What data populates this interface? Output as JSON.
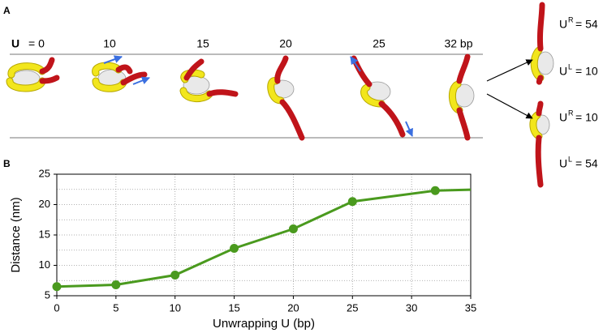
{
  "panels": {
    "a": "A",
    "b": "B"
  },
  "unwrap_symbol": "U",
  "unwrap_labels": [
    "= 0",
    "10",
    "15",
    "20",
    "25",
    "32 bp"
  ],
  "asymmetric_labels": [
    {
      "base": "U",
      "sup": "R",
      "rest": "= 54"
    },
    {
      "base": "U",
      "sup": "L",
      "rest": "= 10"
    },
    {
      "base": "U",
      "sup": "R",
      "rest": "= 10"
    },
    {
      "base": "U",
      "sup": "L",
      "rest": "= 54"
    }
  ],
  "chart_data": {
    "type": "line",
    "x_label": "Unwrapping U (bp)",
    "y_label": "Distance (nm)",
    "x": [
      0,
      5,
      10,
      15,
      20,
      25,
      32,
      35
    ],
    "series": [
      {
        "color": "#4a9a1e",
        "values": [
          6.5,
          6.8,
          8.4,
          12.8,
          16.0,
          20.5,
          22.3,
          22.45
        ],
        "markers": [
          true,
          true,
          true,
          true,
          true,
          true,
          true,
          false
        ]
      }
    ],
    "xlim": [
      0,
      35
    ],
    "xticks": [
      0,
      5,
      10,
      15,
      20,
      25,
      30,
      35
    ],
    "ylim": [
      5,
      25
    ],
    "yticks": [
      5,
      10,
      15,
      20,
      25
    ],
    "minor_yticks": [
      7.5,
      12.5,
      17.5,
      22.5
    ],
    "grid": true
  }
}
